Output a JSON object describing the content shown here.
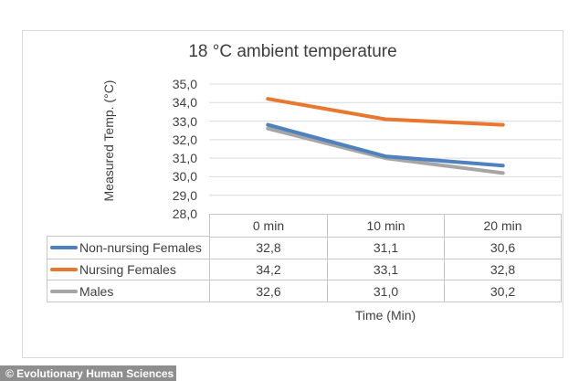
{
  "title": "18 °C ambient temperature",
  "y_axis": {
    "label": "Measured Temp. (°C)",
    "ticks": [
      "35,0",
      "34,0",
      "33,0",
      "32,0",
      "31,0",
      "30,0",
      "29,0",
      "28,0"
    ]
  },
  "x_axis": {
    "label": "Time (Min)"
  },
  "table": {
    "headers": [
      "0 min",
      "10 min",
      "20 min"
    ],
    "rows": [
      {
        "label": "Non-nursing Females",
        "values": [
          "32,8",
          "31,1",
          "30,6"
        ]
      },
      {
        "label": "Nursing Females",
        "values": [
          "34,2",
          "33,1",
          "32,8"
        ]
      },
      {
        "label": "Males",
        "values": [
          "32,6",
          "31,0",
          "30,2"
        ]
      }
    ]
  },
  "credit": {
    "text": "© Evolutionary Human Sciences"
  },
  "colors": {
    "grid": "#d9d9d9",
    "table_border": "#c6c6c6",
    "credit_bg": "#8e8e8e"
  },
  "chart_data": {
    "type": "line",
    "title": "18 °C ambient temperature",
    "xlabel": "Time (Min)",
    "ylabel": "Measured Temp. (°C)",
    "categories": [
      "0 min",
      "10 min",
      "20 min"
    ],
    "x_values_min": [
      0,
      10,
      20
    ],
    "series": [
      {
        "name": "Non-nursing Females",
        "values": [
          32.8,
          31.1,
          30.6
        ],
        "color": "#4E81BD"
      },
      {
        "name": "Nursing Females",
        "values": [
          34.2,
          33.1,
          32.8
        ],
        "color": "#E8772F"
      },
      {
        "name": "Males",
        "values": [
          32.6,
          31.0,
          30.2
        ],
        "color": "#A6A6A6"
      }
    ],
    "ylim": [
      28.0,
      35.0
    ],
    "ytick_step": 1.0,
    "decimal_separator": ",",
    "grid": true,
    "legend_position": "data-table-left"
  }
}
